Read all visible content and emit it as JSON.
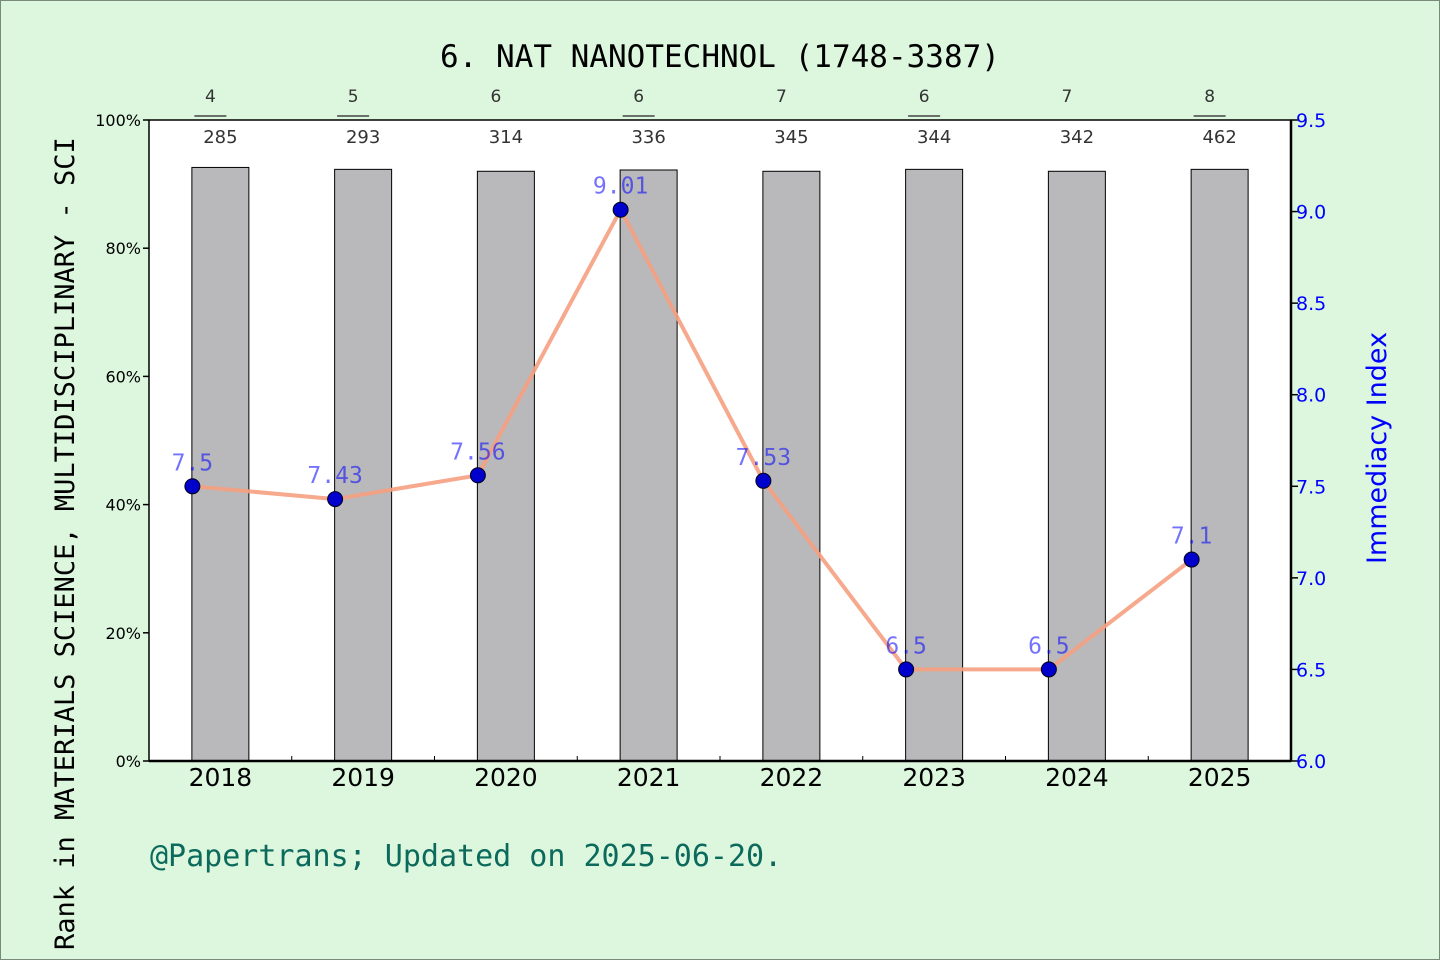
{
  "chart_data": {
    "type": "bar",
    "title": "6. NAT NANOTECHNOL (1748-3387)",
    "categories": [
      "2018",
      "2019",
      "2020",
      "2021",
      "2022",
      "2023",
      "2024",
      "2025"
    ],
    "ylabel_left": "Rank in MATERIALS SCIENCE, MULTIDISCIPLINARY - SCI",
    "ylabel_right": "Immediacy Index",
    "left_axis": {
      "ylim": [
        0,
        100
      ],
      "ticks": [
        "0%",
        "20%",
        "40%",
        "60%",
        "80%",
        "100%"
      ]
    },
    "right_axis": {
      "ylim": [
        6.0,
        9.5
      ],
      "ticks": [
        "6.0",
        "6.5",
        "7.0",
        "7.5",
        "8.0",
        "8.5",
        "9.0",
        "9.5"
      ]
    },
    "series": [
      {
        "type": "bar",
        "color": "#b9b9bb",
        "values": [
          92.6,
          92.3,
          92.0,
          92.2,
          92.0,
          92.3,
          92.0,
          92.3
        ]
      },
      {
        "type": "line",
        "axis": "right",
        "color": "#f5a07f",
        "marker_color": "#0000cd",
        "values": [
          7.5,
          7.43,
          7.56,
          9.01,
          7.53,
          6.5,
          6.5,
          7.1
        ],
        "value_labels": [
          "7.5",
          "7.43",
          "7.56",
          "9.01",
          "7.53",
          "6.5",
          "6.5",
          "7.1"
        ]
      }
    ],
    "rank_labels": [
      "4",
      "5",
      "6",
      "6",
      "7",
      "6",
      "7",
      "8"
    ],
    "rank_underlined": [
      true,
      true,
      false,
      true,
      false,
      true,
      false,
      true
    ],
    "count_labels": [
      "285",
      "293",
      "314",
      "336",
      "345",
      "344",
      "342",
      "462"
    ],
    "grid": false
  },
  "footer": "@Papertrans; Updated on 2025-06-20."
}
